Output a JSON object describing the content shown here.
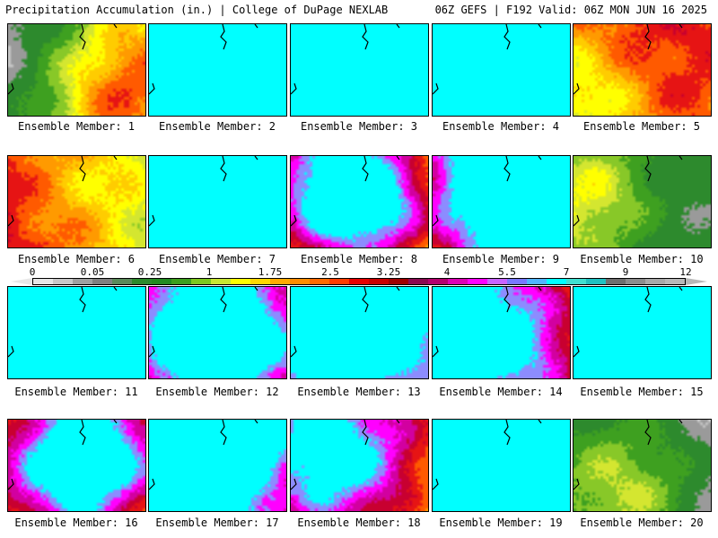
{
  "header": {
    "title_left": "Precipitation Accumulation (in.) | College of DuPage NEXLAB",
    "title_right": "06Z GEFS | F192 Valid: 06Z MON JUN 16 2025"
  },
  "members": [
    {
      "label": "Ensemble Member: 1",
      "seed": 11
    },
    {
      "label": "Ensemble Member: 2",
      "seed": 22
    },
    {
      "label": "Ensemble Member: 3",
      "seed": 33
    },
    {
      "label": "Ensemble Member: 4",
      "seed": 44
    },
    {
      "label": "Ensemble Member: 5",
      "seed": 55
    },
    {
      "label": "Ensemble Member: 6",
      "seed": 66
    },
    {
      "label": "Ensemble Member: 7",
      "seed": 77
    },
    {
      "label": "Ensemble Member: 8",
      "seed": 88
    },
    {
      "label": "Ensemble Member: 9",
      "seed": 99
    },
    {
      "label": "Ensemble Member: 10",
      "seed": 110
    },
    {
      "label": "Ensemble Member: 11",
      "seed": 121
    },
    {
      "label": "Ensemble Member: 12",
      "seed": 132
    },
    {
      "label": "Ensemble Member: 13",
      "seed": 143
    },
    {
      "label": "Ensemble Member: 14",
      "seed": 154
    },
    {
      "label": "Ensemble Member: 15",
      "seed": 165
    },
    {
      "label": "Ensemble Member: 16",
      "seed": 176
    },
    {
      "label": "Ensemble Member: 17",
      "seed": 187
    },
    {
      "label": "Ensemble Member: 18",
      "seed": 198
    },
    {
      "label": "Ensemble Member: 19",
      "seed": 209
    },
    {
      "label": "Ensemble Member: 20",
      "seed": 220
    }
  ],
  "colorbar": {
    "tick_labels": [
      "0",
      "0.05",
      "0.25",
      "1",
      "1.75",
      "2.5",
      "3.25",
      "4",
      "5.5",
      "7",
      "9",
      "12"
    ],
    "colors": [
      "#e6e6e6",
      "#c8c8c8",
      "#a0a0a0",
      "#808080",
      "#5a8a5a",
      "#2d8a2d",
      "#228b22",
      "#3c9f1e",
      "#7cc81e",
      "#c8e632",
      "#ffff00",
      "#ffd700",
      "#ffaa00",
      "#ff8c00",
      "#ff6a00",
      "#ff3c00",
      "#e60000",
      "#c80000",
      "#a00000",
      "#8b0a50",
      "#b4006e",
      "#dc00b4",
      "#ff00ff",
      "#c864ff",
      "#7878ff",
      "#50b4ff",
      "#00ffff",
      "#40e0d0",
      "#20c0c0",
      "#6e6e6e",
      "#8c8c8c",
      "#a8a8a8",
      "#b8b8b8"
    ]
  }
}
